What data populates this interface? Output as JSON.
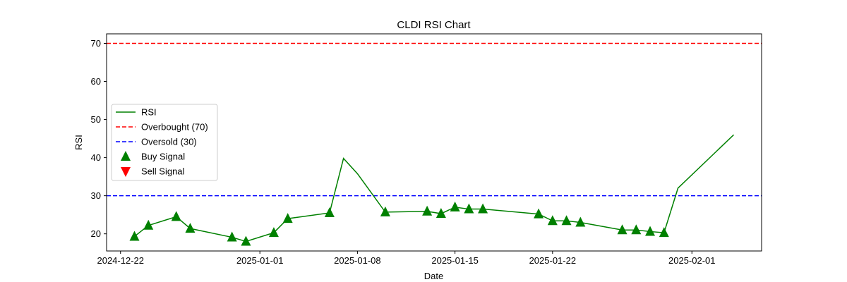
{
  "chart_data": {
    "type": "line",
    "title": "CLDI RSI Chart",
    "xlabel": "Date",
    "ylabel": "RSI",
    "xlim": [
      "2024-12-21",
      "2025-02-06"
    ],
    "ylim": [
      15.5,
      72.5
    ],
    "x_ticks": [
      "2024-12-22",
      "2025-01-01",
      "2025-01-08",
      "2025-01-15",
      "2025-01-22",
      "2025-02-01"
    ],
    "y_ticks": [
      20,
      30,
      40,
      50,
      60,
      70
    ],
    "grid": false,
    "legend_position": "center-left",
    "series": [
      {
        "name": "RSI",
        "color": "#008000",
        "style": "solid",
        "x": [
          "2024-12-23",
          "2024-12-24",
          "2024-12-26",
          "2024-12-27",
          "2024-12-30",
          "2024-12-31",
          "2025-01-02",
          "2025-01-03",
          "2025-01-06",
          "2025-01-07",
          "2025-01-08",
          "2025-01-10",
          "2025-01-13",
          "2025-01-14",
          "2025-01-15",
          "2025-01-16",
          "2025-01-17",
          "2025-01-21",
          "2025-01-22",
          "2025-01-23",
          "2025-01-24",
          "2025-01-27",
          "2025-01-28",
          "2025-01-29",
          "2025-01-30",
          "2025-01-31",
          "2025-02-04"
        ],
        "y": [
          19.3,
          22.2,
          24.5,
          21.4,
          19.1,
          18.0,
          20.3,
          24.0,
          25.5,
          39.8,
          35.8,
          25.7,
          25.9,
          25.3,
          27.0,
          26.5,
          26.5,
          25.2,
          23.4,
          23.4,
          23.0,
          21.0,
          21.0,
          20.6,
          20.3,
          32.0,
          46.0
        ]
      }
    ],
    "reference_lines": [
      {
        "name": "Overbought (70)",
        "y": 70,
        "color": "#ff0000",
        "style": "dashed"
      },
      {
        "name": "Oversold (30)",
        "y": 30,
        "color": "#0000ff",
        "style": "dashed"
      }
    ],
    "markers": [
      {
        "name": "Buy Signal",
        "shape": "triangle-up",
        "color": "#008000",
        "points": [
          [
            "2024-12-23",
            19.3
          ],
          [
            "2024-12-24",
            22.2
          ],
          [
            "2024-12-26",
            24.5
          ],
          [
            "2024-12-27",
            21.4
          ],
          [
            "2024-12-30",
            19.1
          ],
          [
            "2024-12-31",
            18.0
          ],
          [
            "2025-01-02",
            20.3
          ],
          [
            "2025-01-03",
            24.0
          ],
          [
            "2025-01-06",
            25.5
          ],
          [
            "2025-01-10",
            25.7
          ],
          [
            "2025-01-13",
            25.9
          ],
          [
            "2025-01-14",
            25.3
          ],
          [
            "2025-01-15",
            27.0
          ],
          [
            "2025-01-16",
            26.5
          ],
          [
            "2025-01-17",
            26.5
          ],
          [
            "2025-01-21",
            25.2
          ],
          [
            "2025-01-22",
            23.4
          ],
          [
            "2025-01-23",
            23.4
          ],
          [
            "2025-01-24",
            23.0
          ],
          [
            "2025-01-27",
            21.0
          ],
          [
            "2025-01-28",
            21.0
          ],
          [
            "2025-01-29",
            20.6
          ],
          [
            "2025-01-30",
            20.3
          ]
        ]
      },
      {
        "name": "Sell Signal",
        "shape": "triangle-down",
        "color": "#ff0000",
        "points": []
      }
    ]
  }
}
